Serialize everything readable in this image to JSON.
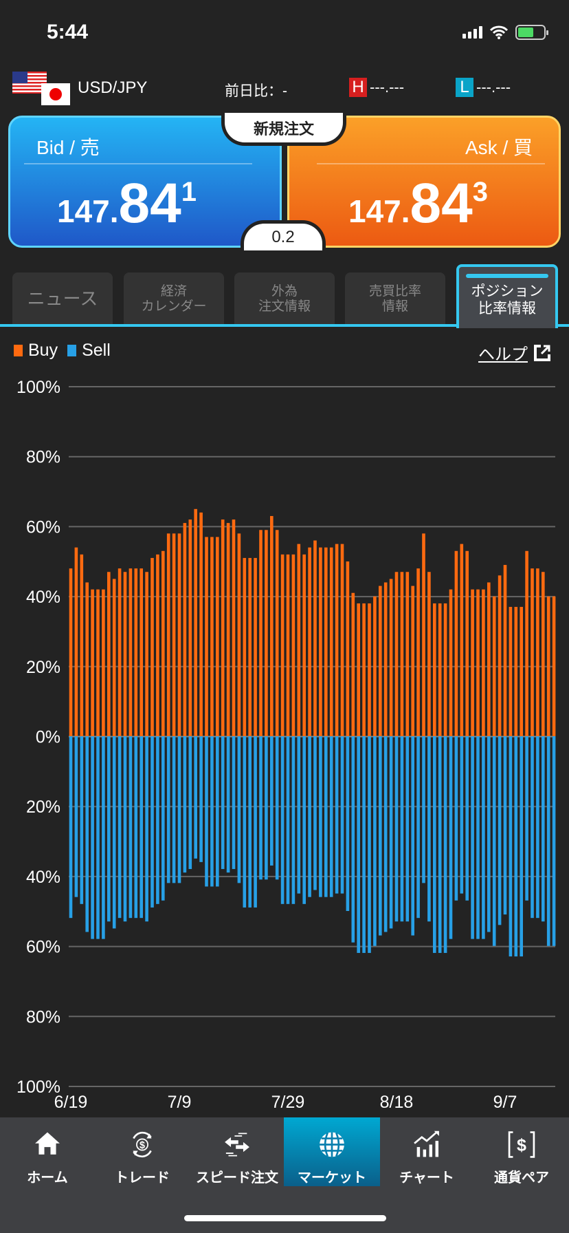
{
  "status": {
    "time": "5:44"
  },
  "header": {
    "pair": "USD/JPY",
    "change_label": "前日比：-",
    "high_badge": "H",
    "high_value": "---.---",
    "low_badge": "L",
    "low_value": "---.---"
  },
  "quote": {
    "bid": {
      "label": "Bid / 売",
      "small": "147.",
      "big": "84",
      "pip": "1"
    },
    "ask": {
      "label": "Ask / 買",
      "small": "147.",
      "big": "84",
      "pip": "3"
    },
    "new_order_label": "新規注文",
    "spread": "0.2"
  },
  "tabs": [
    {
      "line1": "ニュース",
      "line2": ""
    },
    {
      "line1": "経済",
      "line2": "カレンダー"
    },
    {
      "line1": "外為",
      "line2": "注文情報"
    },
    {
      "line1": "売買比率",
      "line2": "情報"
    },
    {
      "line1": "ポジション",
      "line2": "比率情報"
    }
  ],
  "legend": {
    "buy": "Buy",
    "sell": "Sell",
    "help": "ヘルプ"
  },
  "colors": {
    "buy": "#ff6a10",
    "sell": "#27a0e6",
    "accent": "#35c8f0"
  },
  "chart_data": {
    "type": "bar",
    "title": "",
    "ylabel": "",
    "xlabel": "",
    "ylim": [
      -100,
      100
    ],
    "yticks": [
      "100%",
      "80%",
      "60%",
      "40%",
      "20%",
      "0%",
      "20%",
      "40%",
      "60%",
      "80%",
      "100%"
    ],
    "xtick_labels": [
      {
        "index": 0,
        "label": "6/19"
      },
      {
        "index": 20,
        "label": "7/9"
      },
      {
        "index": 40,
        "label": "7/29"
      },
      {
        "index": 60,
        "label": "8/18"
      },
      {
        "index": 80,
        "label": "9/7"
      }
    ],
    "series": [
      {
        "name": "Buy",
        "values": [
          48,
          54,
          52,
          44,
          42,
          42,
          42,
          47,
          45,
          48,
          47,
          48,
          48,
          48,
          47,
          51,
          52,
          53,
          58,
          58,
          58,
          61,
          62,
          65,
          64,
          57,
          57,
          57,
          62,
          61,
          62,
          58,
          51,
          51,
          51,
          59,
          59,
          63,
          59,
          52,
          52,
          52,
          55,
          52,
          54,
          56,
          54,
          54,
          54,
          55,
          55,
          50,
          41,
          38,
          38,
          38,
          40,
          43,
          44,
          45,
          47,
          47,
          47,
          43,
          48,
          58,
          47,
          38,
          38,
          38,
          42,
          53,
          55,
          53,
          42,
          42,
          42,
          44,
          40,
          46,
          49,
          37,
          37,
          37,
          53,
          48,
          48,
          47,
          40,
          40
        ]
      },
      {
        "name": "Sell",
        "values": [
          52,
          46,
          48,
          56,
          58,
          58,
          58,
          53,
          55,
          52,
          53,
          52,
          52,
          52,
          53,
          49,
          48,
          47,
          42,
          42,
          42,
          39,
          38,
          35,
          36,
          43,
          43,
          43,
          38,
          39,
          38,
          42,
          49,
          49,
          49,
          41,
          41,
          37,
          41,
          48,
          48,
          48,
          45,
          48,
          46,
          44,
          46,
          46,
          46,
          45,
          45,
          50,
          59,
          62,
          62,
          62,
          60,
          57,
          56,
          55,
          53,
          53,
          53,
          57,
          52,
          42,
          53,
          62,
          62,
          62,
          58,
          47,
          45,
          47,
          58,
          58,
          58,
          56,
          60,
          54,
          51,
          63,
          63,
          63,
          47,
          52,
          52,
          53,
          60,
          60
        ]
      }
    ]
  },
  "nav": [
    {
      "label": "ホーム",
      "icon": "home-icon"
    },
    {
      "label": "トレード",
      "icon": "trade-icon"
    },
    {
      "label": "スピード注文",
      "icon": "speed-order-icon"
    },
    {
      "label": "マーケット",
      "icon": "globe-icon"
    },
    {
      "label": "チャート",
      "icon": "chart-icon"
    },
    {
      "label": "通貨ペア",
      "icon": "currency-pair-icon"
    }
  ]
}
